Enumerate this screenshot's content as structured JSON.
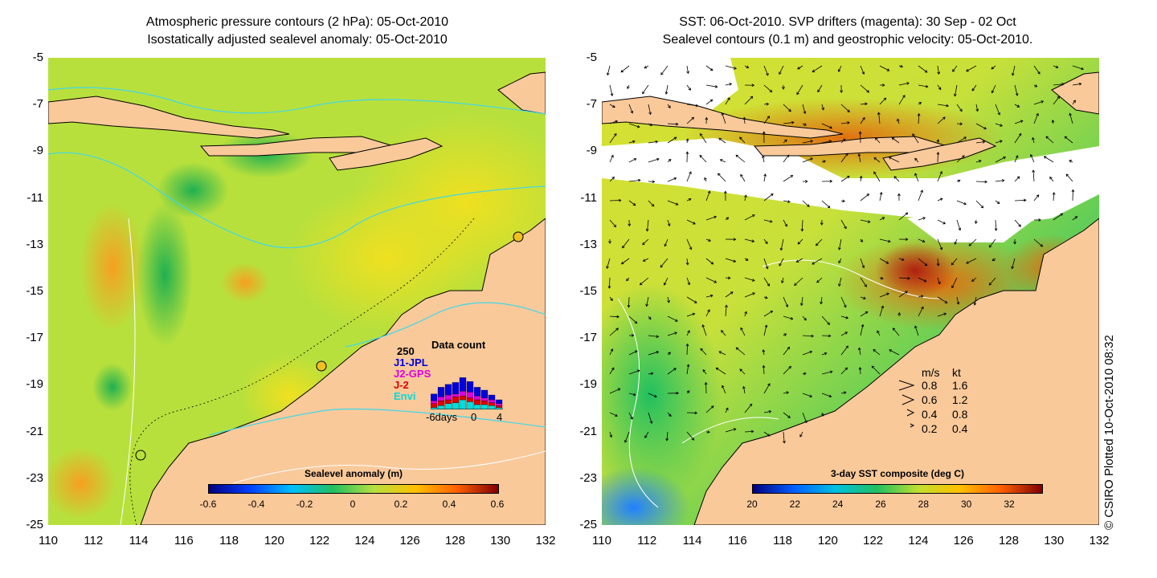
{
  "left_panel": {
    "title_line1": "Atmospheric pressure contours (2 hPa): 05-Oct-2010",
    "title_line2": "Isostatically adjusted sealevel anomaly: 05-Oct-2010",
    "colorbar": {
      "title": "Sealevel anomaly (m)",
      "ticks": [
        "-0.6",
        "-0.4",
        "-0.2",
        "0",
        "0.2",
        "0.4",
        "0.6"
      ],
      "range": [
        -0.6,
        0.6
      ],
      "colormap": [
        "#00007f",
        "#0040ff",
        "#00c0ff",
        "#20c060",
        "#b8e040",
        "#ffc000",
        "#ff6000",
        "#7f0000"
      ]
    },
    "data_count": {
      "title": "Data count",
      "max_label": "250",
      "series": [
        {
          "name": "J1-JPL",
          "color": "#0000dd"
        },
        {
          "name": "J2-GPS",
          "color": "#dd00dd"
        },
        {
          "name": "J-2",
          "color": "#dd0000"
        },
        {
          "name": "Envi",
          "color": "#00dddd"
        }
      ],
      "x_labels": [
        "-6days",
        "0",
        "4"
      ]
    }
  },
  "right_panel": {
    "title_line1": "SST: 06-Oct-2010. SVP drifters (magenta): 30 Sep - 02 Oct",
    "title_line2": "Sealevel contours (0.1 m) and geostrophic velocity: 05-Oct-2010.",
    "colorbar": {
      "title": "3-day SST composite (deg C)",
      "ticks": [
        "20",
        "22",
        "24",
        "26",
        "28",
        "30",
        "32"
      ],
      "range": [
        20,
        33.5
      ],
      "colormap": [
        "#00007f",
        "#0060ff",
        "#00c0e0",
        "#20c060",
        "#c0e030",
        "#ffc000",
        "#ff6000",
        "#7f0000"
      ]
    },
    "velocity_scale": {
      "header_ms": "m/s",
      "header_kt": "kt",
      "rows": [
        {
          "ms": "0.8",
          "kt": "1.6"
        },
        {
          "ms": "0.6",
          "kt": "1.2"
        },
        {
          "ms": "0.4",
          "kt": "0.8"
        },
        {
          "ms": "0.2",
          "kt": "0.4"
        }
      ]
    },
    "credit": "© CSIRO Plotted 10-Oct-2010 08:32"
  },
  "axes": {
    "y_ticks": [
      "-5",
      "-7",
      "-9",
      "-11",
      "-13",
      "-15",
      "-17",
      "-19",
      "-21",
      "-23",
      "-25"
    ],
    "x_ticks": [
      "110",
      "112",
      "114",
      "116",
      "118",
      "120",
      "122",
      "124",
      "126",
      "128",
      "130",
      "132"
    ],
    "lat_range": [
      -25,
      -5
    ],
    "lon_range": [
      110,
      132
    ]
  },
  "colors": {
    "land": "#f9c99a",
    "contour": "#40d8e8",
    "cloud": "#ffffff"
  }
}
